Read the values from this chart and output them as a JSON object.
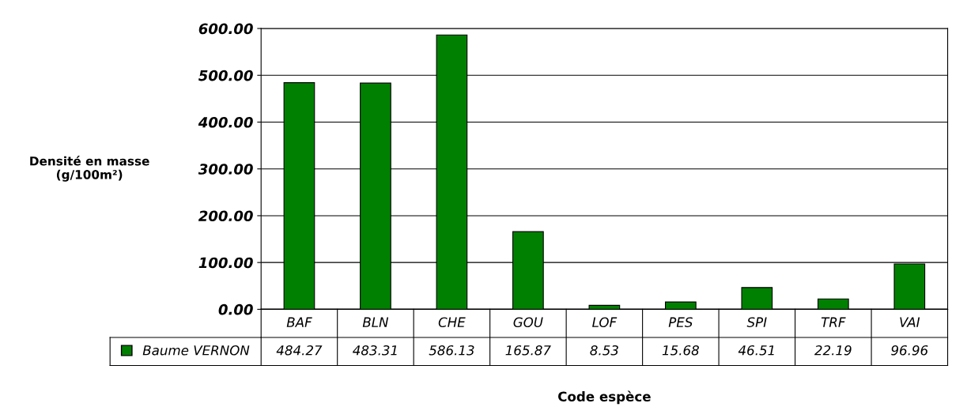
{
  "chart_data": {
    "type": "bar",
    "xlabel": "Code espèce",
    "ylabel": "Densité en masse\n(g/100m²)",
    "categories": [
      "BAF",
      "BLN",
      "CHE",
      "GOU",
      "LOF",
      "PES",
      "SPI",
      "TRF",
      "VAI"
    ],
    "series": [
      {
        "name": "Baume VERNON",
        "color": "#008000",
        "values": [
          484.27,
          483.31,
          586.13,
          165.87,
          8.53,
          15.68,
          46.51,
          22.19,
          96.96
        ]
      }
    ],
    "ylim": [
      0,
      600
    ],
    "yticks": [
      {
        "value": 0,
        "label": "0.00"
      },
      {
        "value": 100,
        "label": "100.00"
      },
      {
        "value": 200,
        "label": "200.00"
      },
      {
        "value": 300,
        "label": "300.00"
      },
      {
        "value": 400,
        "label": "400.00"
      },
      {
        "value": 500,
        "label": "500.00"
      },
      {
        "value": 600,
        "label": "600.00"
      }
    ],
    "grid": "y",
    "data_labels": true,
    "legend": "bottom"
  }
}
